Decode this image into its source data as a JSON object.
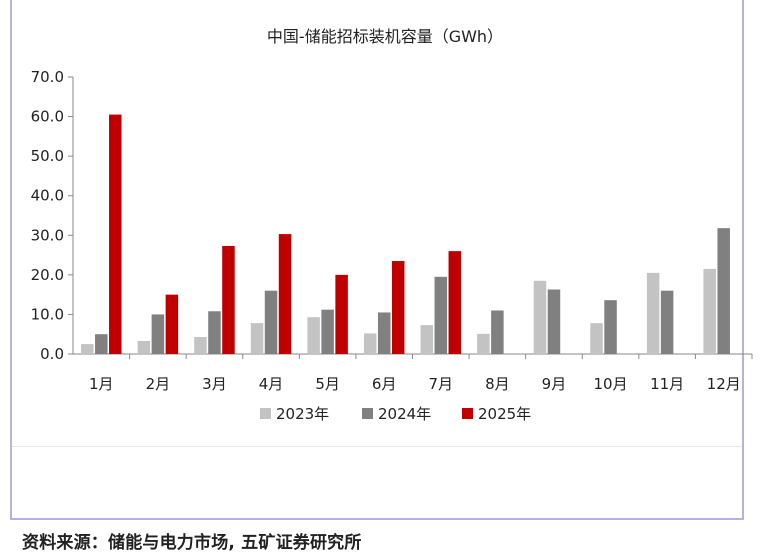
{
  "chart_data": {
    "type": "bar",
    "title": "中国-储能招标装机容量（GWh）",
    "categories": [
      "1月",
      "2月",
      "3月",
      "4月",
      "5月",
      "6月",
      "7月",
      "8月",
      "9月",
      "10月",
      "11月",
      "12月"
    ],
    "series": [
      {
        "name": "2023年",
        "color": "#c3c3c3",
        "values": [
          2.5,
          3.3,
          4.3,
          7.8,
          9.3,
          5.2,
          7.3,
          5.1,
          18.5,
          7.8,
          20.5,
          21.5
        ]
      },
      {
        "name": "2024年",
        "color": "#808080",
        "values": [
          5.0,
          10.0,
          10.8,
          16.0,
          11.2,
          10.5,
          19.5,
          11.0,
          16.3,
          13.6,
          16.0,
          31.8
        ]
      },
      {
        "name": "2025年",
        "color": "#c00000",
        "values": [
          60.5,
          15.0,
          27.3,
          30.3,
          20.0,
          23.5,
          26.0,
          null,
          null,
          null,
          null,
          null
        ]
      }
    ],
    "yticks": [
      "0.0",
      "10.0",
      "20.0",
      "30.0",
      "40.0",
      "50.0",
      "60.0",
      "70.0"
    ],
    "ylim": [
      0,
      70
    ],
    "grid": false,
    "legend_position": "bottom-center"
  },
  "footer": {
    "source": "资料来源：储能与电力市场, 五矿证券研究所"
  }
}
